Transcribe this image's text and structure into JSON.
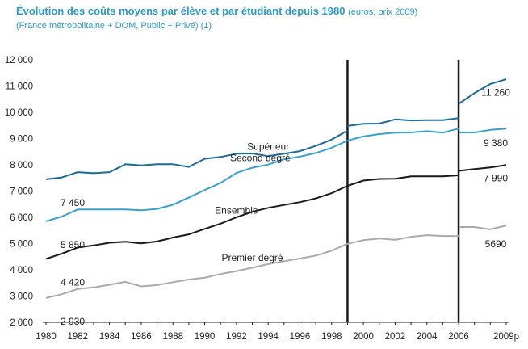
{
  "header": {
    "title": "Évolution des coûts moyens par élève et par étudiant depuis 1980",
    "title_unit": "(euros, prix 2009)",
    "subtitle": "(France métropolitaine + DOM, Public + Privé) (1)"
  },
  "chart_data": {
    "type": "line",
    "title": "Évolution des coûts moyens par élève et par étudiant depuis 1980 (euros, prix 2009)",
    "subtitle": "(France métropolitaine + DOM, Public + Privé) (1)",
    "xlabel": "",
    "ylabel": "",
    "ylim": [
      2000,
      12000
    ],
    "y_ticks": [
      2000,
      3000,
      4000,
      5000,
      6000,
      7000,
      8000,
      9000,
      10000,
      11000,
      12000
    ],
    "y_tick_labels": [
      "2 000",
      "3 000",
      "4 000",
      "5 000",
      "6 000",
      "7 000",
      "8 000",
      "9 000",
      "10 000",
      "11 000",
      "12 000"
    ],
    "xlim": [
      1980,
      2009
    ],
    "x_ticks": [
      1980,
      1982,
      1984,
      1986,
      1988,
      1990,
      1992,
      1994,
      1996,
      1998,
      2000,
      2002,
      2004,
      2006,
      2009
    ],
    "x_tick_labels": [
      "1980",
      "1982",
      "1984",
      "1986",
      "1988",
      "1990",
      "1992",
      "1994",
      "1996",
      "1998",
      "2000",
      "2002",
      "2004",
      "2006",
      "2009p"
    ],
    "grid": false,
    "breaks": [
      1999,
      2006
    ],
    "series": [
      {
        "name": "Supérieur",
        "color": "#1d6a96",
        "segments": [
          {
            "x": [
              1980,
              1981,
              1982,
              1983,
              1984,
              1985,
              1986,
              1987,
              1988,
              1989,
              1990,
              1991,
              1992,
              1993,
              1994,
              1995,
              1996,
              1997,
              1998,
              1999
            ],
            "y": [
              7450,
              7520,
              7720,
              7680,
              7720,
              8020,
              7980,
              8020,
              8020,
              7920,
              8230,
              8300,
              8420,
              8430,
              8330,
              8420,
              8520,
              8720,
              8960,
              9300
            ]
          },
          {
            "x": [
              1999,
              2000,
              2001,
              2002,
              2003,
              2004,
              2005,
              2006
            ],
            "y": [
              9480,
              9560,
              9570,
              9730,
              9690,
              9700,
              9700,
              9780
            ]
          },
          {
            "x": [
              2006,
              2007,
              2008,
              2009
            ],
            "y": [
              10320,
              10730,
              11080,
              11260
            ]
          }
        ],
        "start_label": "7 450",
        "end_label": "11 260"
      },
      {
        "name": "Second degré",
        "color": "#3aa0cc",
        "segments": [
          {
            "x": [
              1980,
              1981,
              1982,
              1983,
              1984,
              1985,
              1986,
              1987,
              1988,
              1989,
              1990,
              1991,
              1992,
              1993,
              1994,
              1995,
              1996,
              1997,
              1998,
              1999
            ],
            "y": [
              5850,
              6030,
              6300,
              6300,
              6300,
              6300,
              6270,
              6320,
              6480,
              6750,
              7040,
              7310,
              7690,
              7890,
              8010,
              8210,
              8310,
              8450,
              8650,
              8920
            ]
          },
          {
            "x": [
              1999,
              2000,
              2001,
              2002,
              2003,
              2004,
              2005,
              2006
            ],
            "y": [
              8920,
              9080,
              9170,
              9220,
              9230,
              9280,
              9220,
              9380
            ]
          },
          {
            "x": [
              2006,
              2007,
              2008,
              2009
            ],
            "y": [
              9230,
              9230,
              9330,
              9380
            ]
          }
        ],
        "start_label": "5 850",
        "end_label": "9 380"
      },
      {
        "name": "Ensemble",
        "color": "#1a1a1a",
        "segments": [
          {
            "x": [
              1980,
              1981,
              1982,
              1983,
              1984,
              1985,
              1986,
              1987,
              1988,
              1989,
              1990,
              1991,
              1992,
              1993,
              1994,
              1995,
              1996,
              1997,
              1998,
              1999
            ],
            "y": [
              4420,
              4620,
              4850,
              4930,
              5030,
              5070,
              5010,
              5080,
              5230,
              5350,
              5560,
              5760,
              6000,
              6210,
              6360,
              6470,
              6580,
              6720,
              6920,
              7200
            ]
          },
          {
            "x": [
              1999,
              2000,
              2001,
              2002,
              2003,
              2004,
              2005,
              2006
            ],
            "y": [
              7200,
              7400,
              7460,
              7470,
              7560,
              7560,
              7560,
              7600
            ]
          },
          {
            "x": [
              2006,
              2007,
              2008,
              2009
            ],
            "y": [
              7770,
              7840,
              7900,
              7990
            ]
          }
        ],
        "start_label": "4 420",
        "end_label": "7 990"
      },
      {
        "name": "Premier degré",
        "color": "#aaaaaa",
        "segments": [
          {
            "x": [
              1980,
              1981,
              1982,
              1983,
              1984,
              1985,
              1986,
              1987,
              1988,
              1989,
              1990,
              1991,
              1992,
              1993,
              1994,
              1995,
              1996,
              1997,
              1998,
              1999
            ],
            "y": [
              2930,
              3070,
              3270,
              3330,
              3430,
              3540,
              3370,
              3420,
              3530,
              3630,
              3700,
              3840,
              3950,
              4080,
              4220,
              4330,
              4430,
              4540,
              4730,
              4990
            ]
          },
          {
            "x": [
              1999,
              2000,
              2001,
              2002,
              2003,
              2004,
              2005,
              2006
            ],
            "y": [
              4990,
              5130,
              5190,
              5140,
              5260,
              5320,
              5290,
              5290
            ]
          },
          {
            "x": [
              2006,
              2007,
              2008,
              2009
            ],
            "y": [
              5630,
              5630,
              5540,
              5690
            ]
          }
        ],
        "start_label": "2 930",
        "end_label": "5690"
      }
    ]
  }
}
